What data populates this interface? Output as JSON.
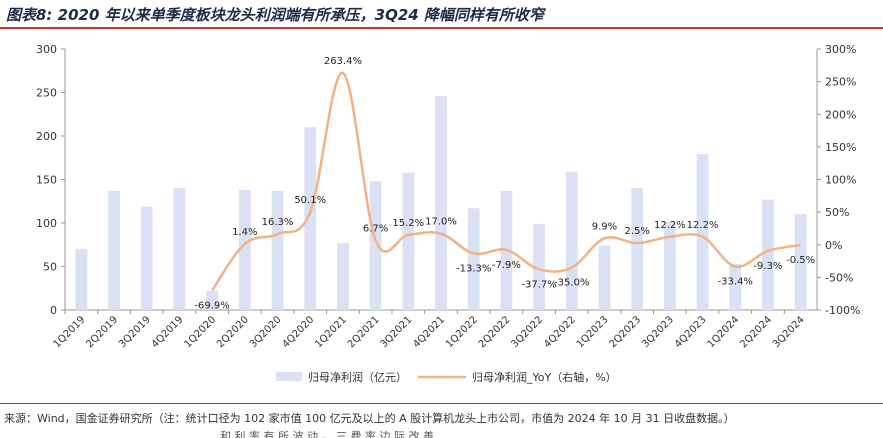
{
  "title": "图表8:  2020 年以来单季度板块龙头利润端有所承压，3Q24 降幅同样有所收窄",
  "source": "来源：Wind，国金证券研究所（注：统计口径为 102 家市值 100 亿元及以上的 A 股计算机龙头上市公司，市值为 2024 年 10 月 31 日收盘数据。）",
  "footer_fragment": "和 利 率 有 所 波 动 ， 三 费 率 边 际 改 善",
  "colors": {
    "bar": "#dbe1f4",
    "line": "#f4b183",
    "rule": "#c0392b",
    "title": "#1f2a44"
  },
  "chart_data": {
    "type": "bar+line",
    "categories": [
      "1Q2019",
      "2Q2019",
      "3Q2019",
      "4Q2019",
      "1Q2020",
      "2Q2020",
      "3Q2020",
      "4Q2020",
      "1Q2021",
      "2Q2021",
      "3Q2021",
      "4Q2021",
      "1Q2022",
      "2Q2022",
      "3Q2022",
      "4Q2022",
      "1Q2023",
      "2Q2023",
      "3Q2023",
      "4Q2023",
      "1Q2024",
      "2Q2024",
      "3Q2024"
    ],
    "series": [
      {
        "name": "归母净利润（亿元）",
        "type": "bar",
        "axis": "left",
        "values": [
          70,
          137,
          119,
          140,
          22,
          138,
          137,
          210,
          77,
          148,
          158,
          246,
          117,
          137,
          99,
          159,
          74,
          140,
          101,
          179,
          53,
          127,
          110
        ]
      },
      {
        "name": "归母净利润_YoY（右轴，%）",
        "type": "line",
        "axis": "right",
        "values": [
          null,
          null,
          null,
          null,
          -69.9,
          1.4,
          16.3,
          50.1,
          263.4,
          6.7,
          15.2,
          17.0,
          -13.3,
          -7.9,
          -37.7,
          -35.0,
          9.9,
          2.5,
          12.2,
          12.2,
          -33.4,
          -9.3,
          -0.5
        ],
        "labels": [
          "",
          "",
          "",
          "",
          "-69.9%",
          "1.4%",
          "16.3%",
          "50.1%",
          "263.4%",
          "6.7%",
          "15.2%",
          "17.0%",
          "-13.3%",
          "-7.9%",
          "-37.7%",
          "-35.0%",
          "9.9%",
          "2.5%",
          "12.2%",
          "12.2%",
          "-33.4%",
          "-9.3%",
          "-0.5%"
        ]
      }
    ],
    "y_left": {
      "min": 0,
      "max": 300,
      "ticks": [
        "0",
        "50",
        "100",
        "150",
        "200",
        "250",
        "300"
      ]
    },
    "y_right": {
      "min": -100,
      "max": 300,
      "ticks": [
        "-100%",
        "-50%",
        "0%",
        "50%",
        "100%",
        "150%",
        "200%",
        "250%",
        "300%"
      ]
    },
    "legend": {
      "position": "bottom"
    }
  }
}
